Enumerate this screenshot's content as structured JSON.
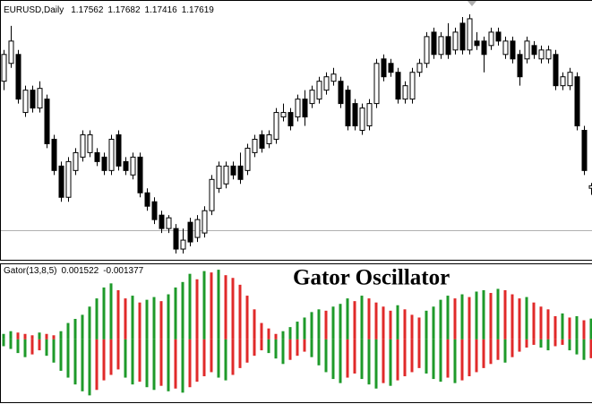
{
  "chart_data": [
    {
      "type": "candlestick",
      "title": "EURUSD,Daily",
      "ylim": [
        1.1596,
        1.2176
      ],
      "grid": false,
      "up_color": "#ffffff",
      "down_color": "#000000",
      "edge_color": "#000000",
      "open": [
        1.1996,
        1.2036,
        1.2056,
        1.1926,
        1.1976,
        1.1936,
        1.1956,
        1.1866,
        1.1806,
        1.1736,
        1.1796,
        1.1826,
        1.1836,
        1.1836,
        1.1826,
        1.1796,
        1.1876,
        1.1816,
        1.1786,
        1.1826,
        1.1746,
        1.1726,
        1.1696,
        1.1666,
        1.1666,
        1.162,
        1.168,
        1.1646,
        1.1656,
        1.1706,
        1.1756,
        1.1766,
        1.1806,
        1.1806,
        1.1796,
        1.1836,
        1.1876,
        1.1856,
        1.1866,
        1.1916,
        1.1926,
        1.1916,
        1.1956,
        1.1946,
        1.1956,
        1.1976,
        1.1996,
        1.1996,
        1.1976,
        1.1946,
        1.1886,
        1.1896,
        1.1946,
        1.2046,
        1.2036,
        1.2016,
        1.1956,
        1.1956,
        1.2016,
        1.2036,
        1.2106,
        1.2056,
        1.2096,
        1.2066,
        1.2126,
        1.2066,
        1.2086,
        1.2086,
        1.2076,
        1.2106,
        1.2056,
        1.2086,
        1.2056,
        1.2046,
        1.2076,
        1.2046,
        1.2046,
        1.2056,
        1.1986,
        1.1986,
        1.2006,
        1.1886,
        1.17562
      ],
      "high": [
        1.2066,
        1.212,
        1.2066,
        1.1986,
        1.1986,
        1.1996,
        1.1966,
        1.1876,
        1.1816,
        1.1826,
        1.1846,
        1.1886,
        1.1886,
        1.1846,
        1.1836,
        1.1876,
        1.1886,
        1.1826,
        1.1836,
        1.1836,
        1.1756,
        1.1736,
        1.1706,
        1.1696,
        1.1676,
        1.1666,
        1.169,
        1.1696,
        1.1716,
        1.1786,
        1.1816,
        1.1816,
        1.1816,
        1.1836,
        1.1856,
        1.1876,
        1.1886,
        1.1886,
        1.1936,
        1.1946,
        1.1936,
        1.1966,
        1.1976,
        1.1986,
        1.2006,
        1.2016,
        1.2026,
        1.2006,
        1.1986,
        1.1956,
        1.1946,
        1.1956,
        1.2046,
        1.2056,
        1.2046,
        1.2026,
        1.1996,
        1.2026,
        1.2046,
        1.2106,
        1.2116,
        1.2106,
        1.2126,
        1.2116,
        1.214,
        1.2146,
        1.2106,
        1.2096,
        1.2116,
        1.2116,
        1.2096,
        1.2096,
        1.2066,
        1.2096,
        1.2086,
        1.2076,
        1.2076,
        1.2066,
        1.2016,
        1.2026,
        1.2016,
        1.1896,
        1.17682
      ],
      "low": [
        1.1976,
        1.2026,
        1.1946,
        1.1916,
        1.1926,
        1.1926,
        1.1846,
        1.1786,
        1.1726,
        1.1726,
        1.1786,
        1.1816,
        1.1826,
        1.1806,
        1.1786,
        1.1786,
        1.1796,
        1.1786,
        1.1776,
        1.1736,
        1.1706,
        1.1676,
        1.1656,
        1.1656,
        1.161,
        1.161,
        1.1626,
        1.1636,
        1.1646,
        1.1696,
        1.1746,
        1.1756,
        1.1776,
        1.1766,
        1.1786,
        1.1826,
        1.1836,
        1.1846,
        1.1856,
        1.1906,
        1.1886,
        1.1906,
        1.1896,
        1.1936,
        1.1946,
        1.1966,
        1.1986,
        1.1936,
        1.1886,
        1.1886,
        1.1876,
        1.1886,
        1.1936,
        1.1996,
        1.2006,
        1.1946,
        1.1946,
        1.1946,
        1.2006,
        1.2026,
        1.2046,
        1.2046,
        1.2046,
        1.2056,
        1.2056,
        1.2056,
        1.2066,
        1.2016,
        1.2066,
        1.2076,
        1.2046,
        1.2036,
        1.1986,
        1.2036,
        1.2046,
        1.2036,
        1.2036,
        1.1976,
        1.1976,
        1.1976,
        1.1886,
        1.1786,
        1.17416
      ],
      "close": [
        1.2056,
        1.2086,
        1.1956,
        1.1976,
        1.1936,
        1.198,
        1.1856,
        1.1796,
        1.1736,
        1.1816,
        1.1836,
        1.1876,
        1.1876,
        1.1816,
        1.1796,
        1.1866,
        1.1806,
        1.1796,
        1.1826,
        1.1746,
        1.1716,
        1.1686,
        1.1666,
        1.169,
        1.162,
        1.164,
        1.1636,
        1.1686,
        1.1706,
        1.1776,
        1.1806,
        1.1806,
        1.1786,
        1.1776,
        1.1846,
        1.1866,
        1.1846,
        1.1876,
        1.1926,
        1.1926,
        1.1896,
        1.1956,
        1.1916,
        1.1976,
        1.1996,
        1.2006,
        1.2012,
        1.1946,
        1.1896,
        1.1896,
        1.1936,
        1.1946,
        1.2036,
        1.2006,
        1.2016,
        1.1956,
        1.1986,
        1.2016,
        1.2036,
        1.2096,
        1.2056,
        1.2096,
        1.2056,
        1.2106,
        1.2066,
        1.2136,
        1.2076,
        1.2056,
        1.2106,
        1.2086,
        1.2086,
        1.2046,
        1.2006,
        1.2086,
        1.2056,
        1.2066,
        1.2066,
        1.1986,
        1.2006,
        1.2016,
        1.1896,
        1.1796,
        1.17619
      ]
    },
    {
      "type": "gator",
      "title": "Gator Oscillator",
      "label": "Gator(13,8,5)",
      "ylim": [
        -0.0046,
        0.0055
      ],
      "grid": false,
      "up_color": "#1e9a2a",
      "down_color": "#e02a2a",
      "upper": [
        0.0004,
        0.0006,
        0.0005,
        0.0004,
        0.0003,
        0.0005,
        0.0004,
        0.0003,
        0.0006,
        0.0012,
        0.0015,
        0.0018,
        0.0024,
        0.003,
        0.0038,
        0.0041,
        0.0036,
        0.003,
        0.0032,
        0.0027,
        0.0029,
        0.0031,
        0.0028,
        0.0033,
        0.0038,
        0.0042,
        0.0048,
        0.0044,
        0.005,
        0.0049,
        0.0051,
        0.0047,
        0.0045,
        0.004,
        0.0032,
        0.0022,
        0.0012,
        0.0008,
        0.0004,
        0.0006,
        0.0009,
        0.0013,
        0.0016,
        0.002,
        0.0022,
        0.0021,
        0.0024,
        0.0026,
        0.003,
        0.0028,
        0.0032,
        0.003,
        0.0027,
        0.0024,
        0.0021,
        0.0025,
        0.0022,
        0.0018,
        0.0016,
        0.0021,
        0.0024,
        0.0029,
        0.0032,
        0.003,
        0.0033,
        0.0031,
        0.0035,
        0.0036,
        0.0034,
        0.0037,
        0.0036,
        0.0033,
        0.003,
        0.0031,
        0.0027,
        0.0024,
        0.0022,
        0.0017,
        0.0019,
        0.0016,
        0.0017,
        0.0014,
        0.001522
      ],
      "lower": [
        -0.0005,
        -0.0007,
        -0.001,
        -0.0013,
        -0.0011,
        -0.0008,
        -0.0012,
        -0.0017,
        -0.0023,
        -0.0028,
        -0.0033,
        -0.0038,
        -0.0041,
        -0.0037,
        -0.003,
        -0.0026,
        -0.0022,
        -0.0028,
        -0.0033,
        -0.0031,
        -0.0035,
        -0.0037,
        -0.0034,
        -0.0038,
        -0.0036,
        -0.0039,
        -0.0035,
        -0.0031,
        -0.0027,
        -0.0024,
        -0.0028,
        -0.003,
        -0.0026,
        -0.0021,
        -0.0017,
        -0.0012,
        -0.0008,
        -0.001,
        -0.0014,
        -0.0018,
        -0.0015,
        -0.0012,
        -0.0009,
        -0.0013,
        -0.0019,
        -0.0024,
        -0.0029,
        -0.0032,
        -0.0028,
        -0.0025,
        -0.0029,
        -0.0033,
        -0.0036,
        -0.0032,
        -0.0034,
        -0.003,
        -0.0027,
        -0.0024,
        -0.0021,
        -0.0025,
        -0.0029,
        -0.0031,
        -0.0028,
        -0.0032,
        -0.003,
        -0.0027,
        -0.0024,
        -0.0021,
        -0.0018,
        -0.0015,
        -0.0017,
        -0.0013,
        -0.0009,
        -0.0006,
        -0.0004,
        -0.0006,
        -0.0008,
        -0.0005,
        -0.0004,
        -0.0008,
        -0.0011,
        -0.0015,
        -0.001377
      ]
    }
  ]
}
